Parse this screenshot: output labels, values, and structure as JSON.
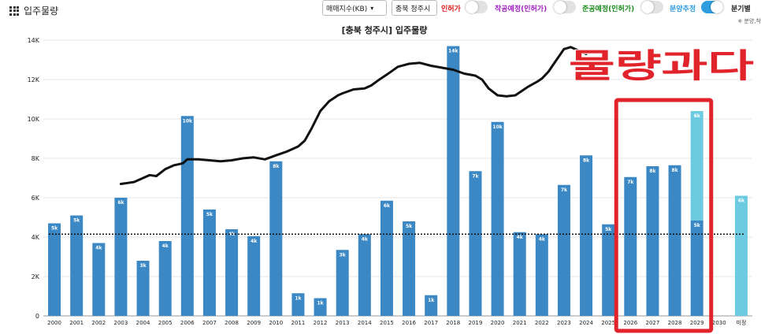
{
  "page": {
    "title": "입주물량",
    "grid_icon": "grid-icon"
  },
  "controls": {
    "index_select": "매매지수(KB)",
    "region_select": "충북 청주시",
    "toggles": [
      {
        "label": "인허가",
        "on": false,
        "color": "#e02020"
      },
      {
        "label": "착공예정(인허가)",
        "on": false,
        "color": "#a020c0"
      },
      {
        "label": "준공예정(인허가)",
        "on": false,
        "color": "#1a8a1a"
      },
      {
        "label": "분양추정",
        "on": true,
        "color": "#2f9de0"
      }
    ],
    "quarterly_label": "분기별",
    "note": "※ 분양,착"
  },
  "overlay": {
    "text": "물량과다",
    "color": "#e1242b"
  },
  "chart_data": {
    "type": "bar",
    "title": "[충북 청주시] 입주물량",
    "xlabel": "",
    "ylabel": "",
    "ylim": [
      0,
      14000
    ],
    "yticks": [
      "0",
      "2K",
      "4K",
      "6K",
      "8K",
      "10K",
      "12K",
      "14K"
    ],
    "categories": [
      "2000",
      "2001",
      "2002",
      "2003",
      "2004",
      "2005",
      "2006",
      "2007",
      "2008",
      "2009",
      "2010",
      "2011",
      "2012",
      "2013",
      "2014",
      "2015",
      "2016",
      "2017",
      "2018",
      "2019",
      "2020",
      "2021",
      "2022",
      "2023",
      "2024",
      "2025",
      "2026",
      "2027",
      "2028",
      "2029",
      "2030",
      "미정"
    ],
    "series": [
      {
        "color": "#3b88c4",
        "values": [
          4700,
          5100,
          3700,
          6000,
          2800,
          3800,
          10150,
          5400,
          4400,
          4050,
          7850,
          1150,
          900,
          3350,
          4150,
          5850,
          4800,
          1050,
          13700,
          7350,
          9850,
          4250,
          4150,
          6650,
          8150,
          4650,
          7050,
          7600,
          7650,
          4850,
          0,
          0
        ],
        "labels": [
          "5k",
          "5k",
          "4k",
          "6k",
          "3k",
          "4k",
          "10k",
          "5k",
          "4k",
          "4k",
          "8k",
          "1k",
          "1k",
          "3k",
          "4k",
          "6k",
          "5k",
          "1k",
          "14k",
          "7k",
          "10k",
          "4k",
          "4k",
          "7k",
          "8k",
          "5k",
          "7k",
          "8k",
          "8k",
          "5k",
          "",
          ""
        ]
      },
      {
        "color": "#6ccbe0",
        "values": [
          0,
          0,
          0,
          0,
          0,
          0,
          0,
          0,
          0,
          0,
          0,
          0,
          0,
          0,
          0,
          0,
          0,
          0,
          0,
          0,
          0,
          0,
          0,
          0,
          0,
          0,
          0,
          0,
          0,
          5550,
          0,
          6100
        ],
        "labels": [
          "",
          "",
          "",
          "",
          "",
          "",
          "",
          "",
          "",
          "",
          "",
          "",
          "",
          "",
          "",
          "",
          "",
          "",
          "",
          "",
          "",
          "",
          "",
          "",
          "",
          "",
          "",
          "",
          "",
          "6k",
          "",
          "6k"
        ]
      }
    ],
    "average_line": {
      "value": 4150,
      "style": "dotted",
      "color": "#111111"
    },
    "price_index_line": {
      "color": "#111111",
      "x": [
        2003,
        2003.3,
        2003.6,
        2004,
        2004.3,
        2004.6,
        2005,
        2005.4,
        2005.8,
        2006,
        2006.5,
        2007,
        2007.5,
        2008,
        2008.5,
        2009,
        2009.5,
        2010,
        2010.5,
        2011,
        2011.3,
        2011.6,
        2012,
        2012.4,
        2012.8,
        2013,
        2013.5,
        2014,
        2014.3,
        2014.6,
        2015,
        2015.5,
        2016,
        2016.5,
        2017,
        2017.5,
        2018,
        2018.5,
        2019,
        2019.3,
        2019.6,
        2020,
        2020.4,
        2020.8,
        2021,
        2021.4,
        2021.8,
        2022,
        2022.3,
        2022.6,
        2023,
        2023.3,
        2023.6,
        2024
      ],
      "y": [
        6700,
        6750,
        6800,
        7000,
        7150,
        7100,
        7450,
        7650,
        7750,
        7950,
        7950,
        7900,
        7850,
        7900,
        8000,
        8050,
        7950,
        8150,
        8350,
        8600,
        8900,
        9500,
        10400,
        10900,
        11200,
        11300,
        11500,
        11550,
        11700,
        11950,
        12250,
        12650,
        12800,
        12850,
        12700,
        12600,
        12500,
        12300,
        12200,
        12000,
        11550,
        11200,
        11150,
        11200,
        11350,
        11650,
        11900,
        12050,
        12400,
        12900,
        13550,
        13650,
        13500,
        13300
      ]
    },
    "highlight": {
      "from": "2026",
      "to": "2029",
      "color": "#e1242b"
    },
    "legend": "none",
    "grid": true
  }
}
